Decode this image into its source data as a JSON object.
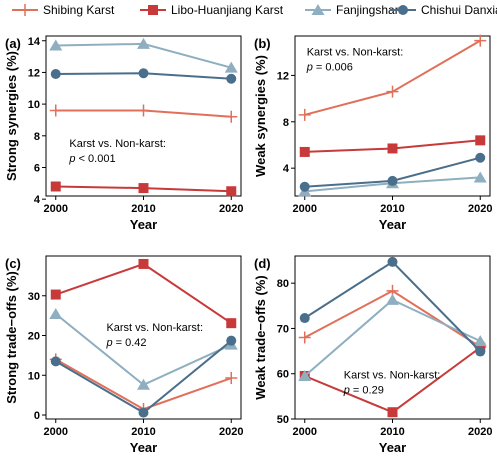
{
  "colors": {
    "Shibing Karst": "#e0705a",
    "Libo-Huanjiang Karst": "#c83a3a",
    "Fanjingshan": "#8fafc0",
    "Chishui Danxia": "#4a6f8c"
  },
  "legend": [
    {
      "name": "Shibing Karst",
      "marker": "plus"
    },
    {
      "name": "Libo-Huanjiang Karst",
      "marker": "square"
    },
    {
      "name": "Fanjingshan",
      "marker": "triangle"
    },
    {
      "name": "Chishui Danxia",
      "marker": "circle"
    }
  ],
  "chart_data": [
    {
      "type": "line",
      "panel": "(a)",
      "xlabel": "Year",
      "ylabel": "Strong synergies (%)",
      "x": [
        2000,
        2010,
        2020
      ],
      "xticks": [
        "2000",
        "2010",
        "2020"
      ],
      "ylim": [
        4.2,
        14.3
      ],
      "yticks": [
        4,
        6,
        8,
        10,
        12,
        14
      ],
      "annotation": [
        "Karst vs. Non-karst:",
        "p < 0.001"
      ],
      "series": [
        {
          "name": "Shibing Karst",
          "values": [
            9.6,
            9.6,
            9.2
          ]
        },
        {
          "name": "Libo-Huanjiang Karst",
          "values": [
            4.8,
            4.7,
            4.5
          ]
        },
        {
          "name": "Fanjingshan",
          "values": [
            13.7,
            13.8,
            12.3
          ]
        },
        {
          "name": "Chishui Danxia",
          "values": [
            11.9,
            11.95,
            11.6
          ]
        }
      ]
    },
    {
      "type": "line",
      "panel": "(b)",
      "xlabel": "Year",
      "ylabel": "Weak synergies (%)",
      "x": [
        2000,
        2010,
        2020
      ],
      "xticks": [
        "2000",
        "2010",
        "2020"
      ],
      "ylim": [
        1.6,
        15.4
      ],
      "yticks": [
        4,
        8,
        12
      ],
      "annotation": [
        "Karst vs. Non-karst:",
        "p = 0.006"
      ],
      "series": [
        {
          "name": "Shibing Karst",
          "values": [
            8.6,
            10.6,
            15.0
          ]
        },
        {
          "name": "Libo-Huanjiang Karst",
          "values": [
            5.4,
            5.7,
            6.4
          ]
        },
        {
          "name": "Fanjingshan",
          "values": [
            2.0,
            2.7,
            3.2
          ]
        },
        {
          "name": "Chishui Danxia",
          "values": [
            2.4,
            2.9,
            4.9
          ]
        }
      ]
    },
    {
      "type": "line",
      "panel": "(c)",
      "xlabel": "Year",
      "ylabel": "Strong trade−offs (%)",
      "x": [
        2000,
        2010,
        2020
      ],
      "xticks": [
        "2000",
        "2010",
        "2020"
      ],
      "ylim": [
        -1,
        40
      ],
      "yticks": [
        0,
        10,
        20,
        30
      ],
      "annotation": [
        "Karst vs. Non-karst:",
        "p = 0.42"
      ],
      "series": [
        {
          "name": "Shibing Karst",
          "values": [
            14.0,
            1.5,
            9.3
          ]
        },
        {
          "name": "Libo-Huanjiang Karst",
          "values": [
            30.3,
            38.0,
            23.1
          ]
        },
        {
          "name": "Fanjingshan",
          "values": [
            25.4,
            7.6,
            17.7
          ]
        },
        {
          "name": "Chishui Danxia",
          "values": [
            13.5,
            0.6,
            18.7
          ]
        }
      ]
    },
    {
      "type": "line",
      "panel": "(d)",
      "xlabel": "Year",
      "ylabel": "Weak trade−offs (%)",
      "x": [
        2000,
        2010,
        2020
      ],
      "xticks": [
        "2000",
        "2010",
        "2020"
      ],
      "ylim": [
        50,
        86
      ],
      "yticks": [
        50,
        60,
        70,
        80
      ],
      "annotation": [
        "Karst vs. Non-karst:",
        "p = 0.29"
      ],
      "series": [
        {
          "name": "Shibing Karst",
          "values": [
            68.0,
            78.3,
            65.9
          ]
        },
        {
          "name": "Libo-Huanjiang Karst",
          "values": [
            59.5,
            51.5,
            65.8
          ]
        },
        {
          "name": "Fanjingshan",
          "values": [
            59.5,
            76.3,
            67.2
          ]
        },
        {
          "name": "Chishui Danxia",
          "values": [
            72.3,
            84.7,
            64.9
          ]
        }
      ]
    }
  ]
}
